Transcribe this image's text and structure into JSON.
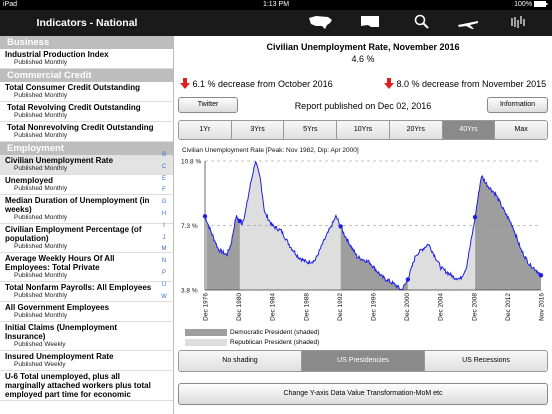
{
  "status": {
    "carrier": "iPad",
    "time": "1:13 PM",
    "battery": "100%"
  },
  "left_header": "Indicators - National",
  "nav_icons": [
    "us-map-icon",
    "state-map-icon",
    "search-icon",
    "airplane-icon",
    "dow-chart-icon"
  ],
  "sections": [
    {
      "name": "Business",
      "items": [
        {
          "title": "Industrial Production Index",
          "sub": "Published Monthly"
        }
      ]
    },
    {
      "name": "Commercial Credit",
      "items": [
        {
          "title": "Total Consumer Credit Outstanding",
          "sub": "Published Monthly"
        },
        {
          "title": "Total Revolving Credit Outstanding",
          "sub": "Published Monthly"
        },
        {
          "title": "Total Nonrevolving Credit Outstanding",
          "sub": "Published Monthly"
        }
      ]
    },
    {
      "name": "Employment",
      "items": [
        {
          "title": "Civilian Unemployment Rate",
          "sub": "Published Monthly",
          "selected": true
        },
        {
          "title": "Unemployed",
          "sub": "Published Monthly"
        },
        {
          "title": "Median Duration of Unemployment (in weeks)",
          "sub": "Published Monthly"
        },
        {
          "title": "Civilian Employment Percentage (of population)",
          "sub": "Published Monthly"
        },
        {
          "title": "Average Weekly Hours Of All Employees: Total Private",
          "sub": "Published Monthly"
        },
        {
          "title": "Total Nonfarm Payrolls: All Employees",
          "sub": "Published Monthly"
        },
        {
          "title": "All Government Employees",
          "sub": "Published Monthly"
        },
        {
          "title": "Initial Claims (Unemployment Insurance)",
          "sub": "Published Weekly"
        },
        {
          "title": "Insured Unemployment Rate",
          "sub": "Published Weekly"
        },
        {
          "title": "U-6 Total unemployed, plus all marginally attached workers plus total employed part time for economic",
          "sub": ""
        }
      ]
    }
  ],
  "alpha_index": [
    "B",
    "C",
    "E",
    "F",
    "G",
    "H",
    "I",
    "J",
    "M",
    "N",
    "P",
    "U",
    "W"
  ],
  "main": {
    "title": "Civilian Unemployment Rate, November 2016",
    "subtitle": "4.6 %",
    "change_month": "6.1 % decrease from October 2016",
    "change_year": "8.0 % decrease from November 2015",
    "twitter": "Twitter",
    "report": "Report published on Dec 02, 2016",
    "information": "Information",
    "timeframes": [
      "1Yr",
      "3Yrs",
      "5Yrs",
      "10Yrs",
      "20Yrs",
      "40Yrs",
      "Max"
    ],
    "timeframe_selected": "40Yrs",
    "legend": [
      "Democratic President (shaded)",
      "Republican President (shaded)"
    ],
    "shading": [
      "No shading",
      "US Presidencies",
      "US Recessions"
    ],
    "shading_selected": "US Presidencies",
    "transform": "Change Y-axis Data Value Transformation-MoM etc"
  },
  "chart_data": {
    "type": "line",
    "title": "Civilian Unemployment Rate [Peak: Nov 1982, Dip: Apr 2000]",
    "y_ticks": [
      "10.8 %",
      "7.3 %",
      "3.8 %"
    ],
    "ylim": [
      3.8,
      10.8
    ],
    "x_tick_labels": [
      "Dec 1976",
      "Dec 1980",
      "Dec 1984",
      "Dec 1988",
      "Dec 1992",
      "Dec 1996",
      "Dec 2000",
      "Dec 2004",
      "Dec 2008",
      "Dec 2012",
      "Nov 2016"
    ],
    "x_range": [
      1976.9,
      2016.9
    ],
    "grid": "dashed horizontal at tick values",
    "series": [
      {
        "color": "#1e20e6",
        "points": [
          [
            1976.9,
            7.8
          ],
          [
            1977.5,
            7.1
          ],
          [
            1978.5,
            6.0
          ],
          [
            1979.5,
            5.7
          ],
          [
            1980.0,
            6.3
          ],
          [
            1980.6,
            7.8
          ],
          [
            1981.3,
            7.4
          ],
          [
            1981.7,
            8.0
          ],
          [
            1982.3,
            9.5
          ],
          [
            1982.9,
            10.8
          ],
          [
            1983.5,
            9.8
          ],
          [
            1984.0,
            8.0
          ],
          [
            1984.9,
            7.3
          ],
          [
            1986.0,
            7.0
          ],
          [
            1987.0,
            6.2
          ],
          [
            1988.0,
            5.6
          ],
          [
            1989.0,
            5.3
          ],
          [
            1990.0,
            5.4
          ],
          [
            1991.0,
            6.4
          ],
          [
            1992.5,
            7.8
          ],
          [
            1993.5,
            6.8
          ],
          [
            1995.0,
            5.6
          ],
          [
            1996.5,
            5.3
          ],
          [
            1998.0,
            4.5
          ],
          [
            1999.5,
            4.1
          ],
          [
            2000.3,
            3.8
          ],
          [
            2001.0,
            4.3
          ],
          [
            2002.0,
            5.7
          ],
          [
            2003.5,
            6.3
          ],
          [
            2005.0,
            5.0
          ],
          [
            2006.5,
            4.5
          ],
          [
            2007.3,
            4.4
          ],
          [
            2008.0,
            5.0
          ],
          [
            2008.9,
            7.3
          ],
          [
            2009.8,
            10.0
          ],
          [
            2010.5,
            9.5
          ],
          [
            2011.5,
            9.0
          ],
          [
            2012.5,
            8.1
          ],
          [
            2013.5,
            7.3
          ],
          [
            2014.5,
            6.0
          ],
          [
            2015.5,
            5.2
          ],
          [
            2016.3,
            4.9
          ],
          [
            2016.9,
            4.6
          ]
        ]
      }
    ],
    "shading": [
      {
        "party": "Democratic",
        "from": 1977.05,
        "to": 1981.05
      },
      {
        "party": "Republican",
        "from": 1981.05,
        "to": 1993.05
      },
      {
        "party": "Democratic",
        "from": 1993.05,
        "to": 2001.05
      },
      {
        "party": "Republican",
        "from": 2001.05,
        "to": 2009.05
      },
      {
        "party": "Democratic",
        "from": 2009.05,
        "to": 2016.9
      }
    ]
  },
  "colors": {
    "democratic": "#9e9e9e",
    "republican": "#dedede",
    "line": "#1e20e6",
    "arrow": "#e02020"
  }
}
